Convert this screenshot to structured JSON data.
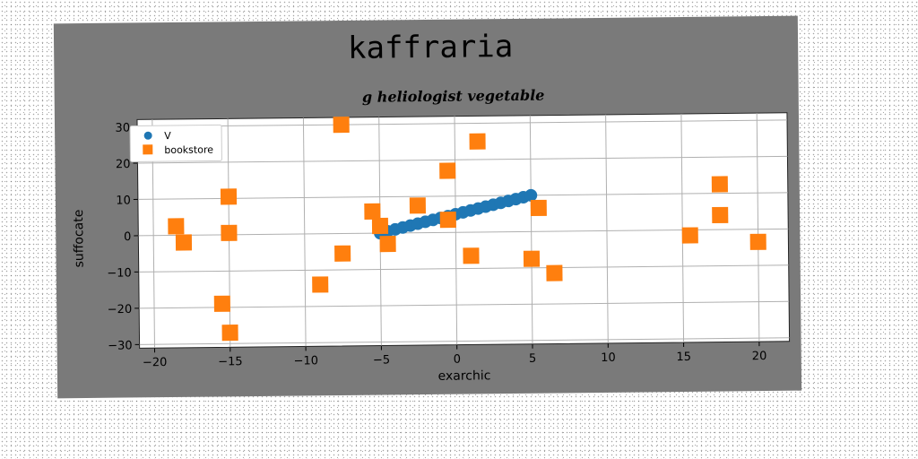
{
  "chart_data": {
    "type": "scatter",
    "title": "kaffraria",
    "subtitle": "g heliologist vegetable",
    "xlabel": "exarchic",
    "ylabel": "suffocate",
    "xlim": [
      -21,
      22
    ],
    "ylim": [
      -31,
      32
    ],
    "xticks": [
      -20,
      -15,
      -10,
      -5,
      0,
      5,
      10,
      15,
      20
    ],
    "yticks": [
      -30,
      -20,
      -10,
      0,
      10,
      20,
      30
    ],
    "grid": true,
    "legend_position": "upper-left",
    "series": [
      {
        "name": "V",
        "marker": "circle",
        "color": "#1f77b4",
        "x": [
          -5.0,
          -4.5,
          -4.0,
          -3.5,
          -3.0,
          -2.5,
          -2.0,
          -1.5,
          -1.0,
          -0.5,
          0.0,
          0.5,
          1.0,
          1.5,
          2.0,
          2.5,
          3.0,
          3.5,
          4.0,
          4.5,
          5.0
        ],
        "y": [
          0.0,
          0.5,
          1.0,
          1.5,
          2.0,
          2.5,
          3.0,
          3.5,
          4.0,
          4.5,
          5.0,
          5.5,
          6.0,
          6.5,
          7.0,
          7.5,
          8.0,
          8.5,
          9.0,
          9.5,
          10.0
        ]
      },
      {
        "name": "bookstore",
        "marker": "square",
        "color": "#ff7f0e",
        "x": [
          -7.5,
          1.5,
          -0.5,
          -15.0,
          -5.5,
          -2.5,
          -0.5,
          5.5,
          -18.5,
          -18.0,
          -15.0,
          -5.0,
          -4.5,
          -7.5,
          1.0,
          5.0,
          6.5,
          -9.0,
          -15.5,
          -15.0,
          15.5,
          17.5,
          17.5,
          20.0
        ],
        "y": [
          30.0,
          25.0,
          17.0,
          10.5,
          6.0,
          7.5,
          3.5,
          6.5,
          2.5,
          -2.0,
          0.5,
          2.0,
          -3.0,
          -5.5,
          -6.5,
          -7.5,
          -11.5,
          -14.0,
          -19.0,
          -27.0,
          -1.5,
          12.5,
          4.0,
          -3.5
        ]
      }
    ]
  },
  "colors": {
    "figure_background": "#7a7a7a",
    "axes_background": "#ffffff",
    "grid": "#b0b0b0"
  }
}
